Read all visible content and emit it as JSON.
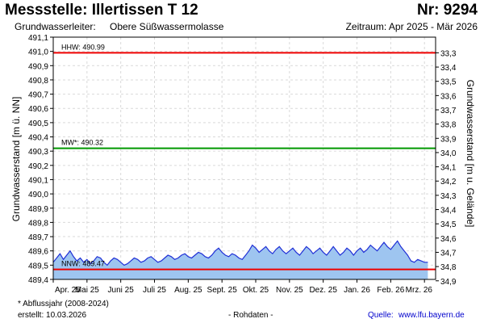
{
  "header": {
    "title": "Messstelle: Illertissen T 12",
    "number": "Nr: 9294",
    "aquifer_label": "Grundwasserleiter:",
    "aquifer_value": "Obere Süßwassermolasse",
    "period": "Zeitraum: Apr 2025 - Mär 2026"
  },
  "footer": {
    "footnote": "* Abflussjahr (2008-2024)",
    "created": "erstellt:  10.03.2026",
    "rawdata": "- Rohdaten -",
    "source_label": "Quelle:",
    "source_url": "www.lfu.bayern.de"
  },
  "colors": {
    "hhw": "#ee0000",
    "mw": "#009900",
    "nnw": "#ee0000",
    "series_line": "#1f2fd6",
    "series_fill": "#9ec5f0",
    "grid": "#d9d9d9"
  },
  "chart_data": {
    "type": "area",
    "ylabel_left": "Grundwasserstand [m ü. NN]",
    "ylabel_right": "Grundwasserstand [m u. Gelände]",
    "ylim": [
      489.4,
      491.1
    ],
    "yticks_left": [
      "491,1",
      "491,0",
      "490,9",
      "490,8",
      "490,7",
      "490,6",
      "490,5",
      "490,4",
      "490,3",
      "490,2",
      "490,1",
      "490,0",
      "489,9",
      "489,8",
      "489,7",
      "489,6",
      "489,5",
      "489,4"
    ],
    "yticks_left_values": [
      491.1,
      491.0,
      490.9,
      490.8,
      490.7,
      490.6,
      490.5,
      490.4,
      490.3,
      490.2,
      490.1,
      490.0,
      489.9,
      489.8,
      489.7,
      489.6,
      489.5,
      489.4
    ],
    "yticks_right": [
      "33,3",
      "33,4",
      "33,5",
      "33,6",
      "33,7",
      "33,8",
      "33,9",
      "34,0",
      "34,1",
      "34,2",
      "34,3",
      "34,4",
      "34,5",
      "34,6",
      "34,7",
      "34,8",
      "34,9"
    ],
    "right_axis_offset": 524.29,
    "xticks": [
      "Apr. 25",
      "Mai 25",
      "Juni 25",
      "Juli 25",
      "Aug. 25",
      "Sept. 25",
      "Okt. 25",
      "Nov. 25",
      "Dez. 25",
      "Jan. 26",
      "Feb. 26",
      "Mrz. 26"
    ],
    "xlim": [
      0,
      11.33
    ],
    "grid": true,
    "reference_lines": [
      {
        "key": "hhw",
        "label": "HHW: 490.99",
        "value": 490.99
      },
      {
        "key": "mw",
        "label": "MW*: 490.32",
        "value": 490.32
      },
      {
        "key": "nnw",
        "label": "NNW: 489.47",
        "value": 489.47
      }
    ],
    "series": [
      {
        "x": [
          0.0,
          0.1,
          0.2,
          0.3,
          0.4,
          0.5,
          0.6,
          0.7,
          0.8,
          0.9,
          1.0,
          1.1,
          1.2,
          1.3,
          1.4,
          1.5,
          1.6,
          1.7,
          1.8,
          1.9,
          2.0,
          2.1,
          2.2,
          2.3,
          2.4,
          2.5,
          2.6,
          2.7,
          2.8,
          2.9,
          3.0,
          3.1,
          3.2,
          3.3,
          3.4,
          3.5,
          3.6,
          3.7,
          3.8,
          3.9,
          4.0,
          4.1,
          4.2,
          4.3,
          4.4,
          4.5,
          4.6,
          4.7,
          4.8,
          4.9,
          5.0,
          5.1,
          5.2,
          5.3,
          5.4,
          5.5,
          5.6,
          5.7,
          5.8,
          5.9,
          6.0,
          6.1,
          6.2,
          6.3,
          6.4,
          6.5,
          6.6,
          6.7,
          6.8,
          6.9,
          7.0,
          7.1,
          7.2,
          7.3,
          7.4,
          7.5,
          7.6,
          7.7,
          7.8,
          7.9,
          8.0,
          8.1,
          8.2,
          8.3,
          8.4,
          8.5,
          8.6,
          8.7,
          8.8,
          8.9,
          9.0,
          9.1,
          9.2,
          9.3,
          9.4,
          9.5,
          9.6,
          9.7,
          9.8,
          9.9,
          10.0,
          10.1,
          10.2,
          10.3,
          10.4,
          10.5,
          10.6,
          10.7,
          10.8,
          10.9,
          11.0,
          11.1
        ],
        "values": [
          489.52,
          489.55,
          489.58,
          489.54,
          489.57,
          489.6,
          489.56,
          489.53,
          489.55,
          489.52,
          489.54,
          489.51,
          489.53,
          489.56,
          489.55,
          489.52,
          489.5,
          489.53,
          489.55,
          489.54,
          489.52,
          489.5,
          489.51,
          489.53,
          489.55,
          489.54,
          489.52,
          489.53,
          489.55,
          489.56,
          489.54,
          489.52,
          489.53,
          489.55,
          489.57,
          489.56,
          489.54,
          489.55,
          489.57,
          489.58,
          489.56,
          489.55,
          489.57,
          489.59,
          489.58,
          489.56,
          489.55,
          489.57,
          489.6,
          489.62,
          489.59,
          489.57,
          489.56,
          489.58,
          489.57,
          489.55,
          489.54,
          489.57,
          489.6,
          489.64,
          489.62,
          489.59,
          489.61,
          489.63,
          489.6,
          489.58,
          489.61,
          489.63,
          489.6,
          489.58,
          489.6,
          489.62,
          489.59,
          489.57,
          489.6,
          489.63,
          489.61,
          489.58,
          489.6,
          489.62,
          489.59,
          489.57,
          489.6,
          489.63,
          489.6,
          489.57,
          489.59,
          489.62,
          489.6,
          489.57,
          489.6,
          489.62,
          489.59,
          489.61,
          489.64,
          489.62,
          489.6,
          489.63,
          489.66,
          489.63,
          489.61,
          489.64,
          489.67,
          489.63,
          489.6,
          489.57,
          489.53,
          489.52,
          489.54,
          489.53,
          489.52,
          489.52
        ]
      }
    ]
  }
}
